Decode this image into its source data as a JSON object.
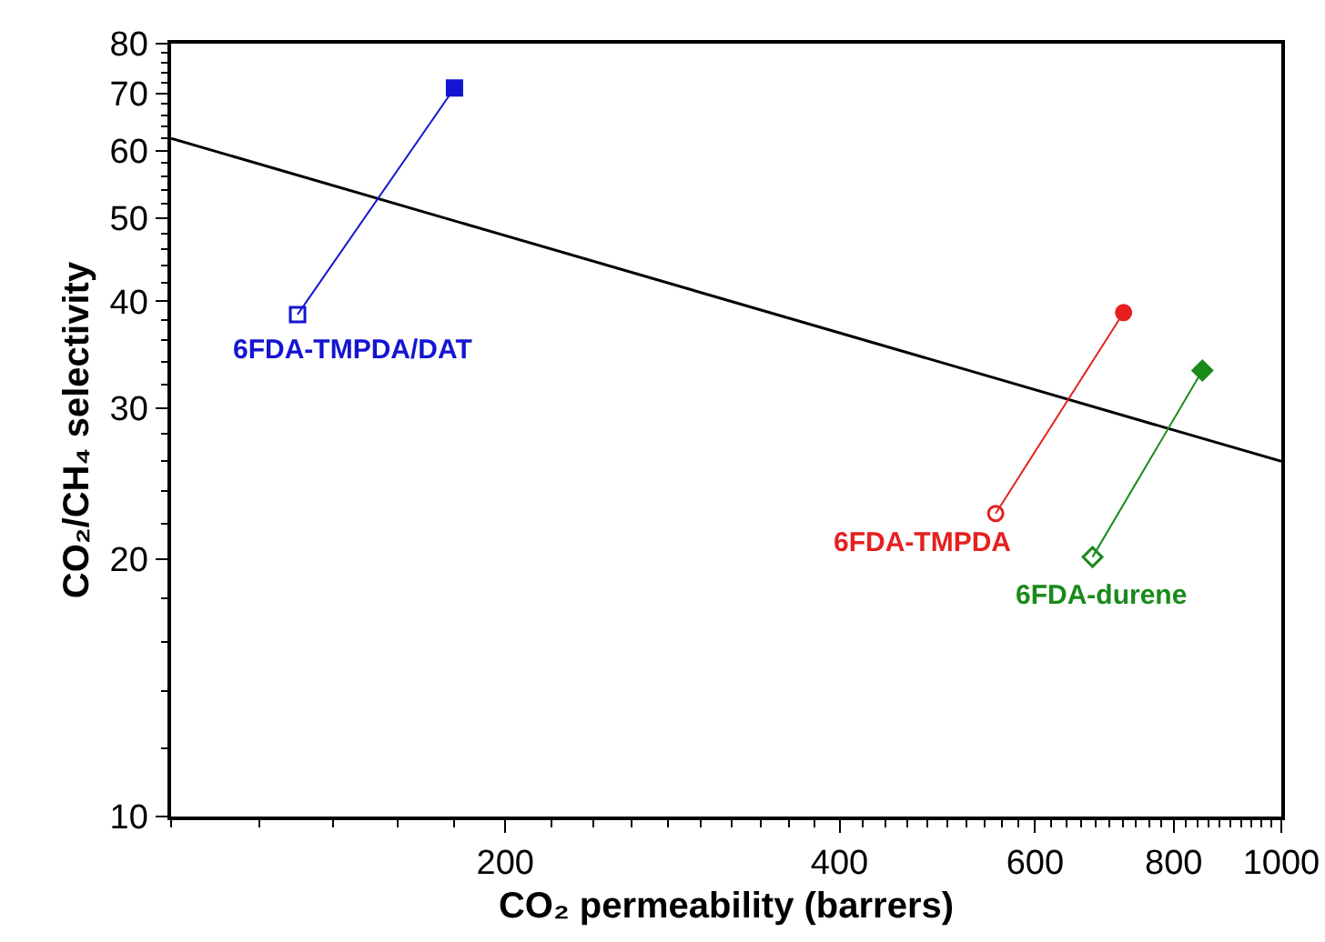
{
  "chart_data": {
    "type": "line",
    "xlabel": "CO₂ permeability (barrers)",
    "ylabel": "CO₂/CH₄ selectivity",
    "log": "xy",
    "grid": false,
    "xlim": [
      100,
      1000
    ],
    "xticks": [
      200,
      400,
      600,
      800,
      1000
    ],
    "ylim": [
      10,
      80
    ],
    "yticks": [
      10,
      20,
      30,
      40,
      50,
      60,
      70,
      80
    ],
    "series": [
      {
        "type": "line",
        "color": "#000000",
        "x": [
          100,
          1000
        ],
        "values": [
          62,
          26
        ],
        "marker": "none"
      },
      {
        "name": "6FDA-TMPDA/DAT",
        "color": "#1414d2",
        "x": [
          130,
          180
        ],
        "values": [
          38.6,
          71
        ],
        "marker": "square"
      },
      {
        "name": "6FDA-TMPDA",
        "color": "#e62020",
        "x": [
          553,
          721
        ],
        "values": [
          22.6,
          38.8
        ],
        "marker": "circle"
      },
      {
        "name": "6FDA-durene",
        "color": "#1a8a1a",
        "x": [
          676,
          849
        ],
        "values": [
          20.1,
          33.2
        ],
        "marker": "diamond"
      }
    ]
  }
}
